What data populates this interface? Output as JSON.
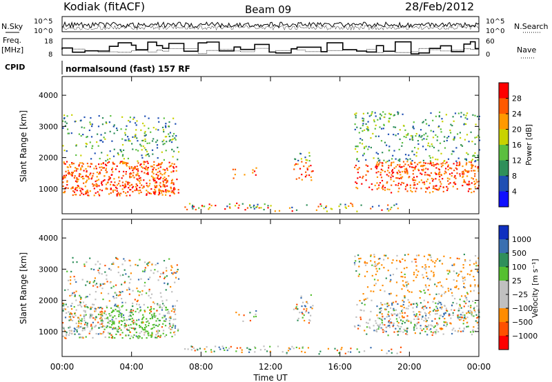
{
  "header": {
    "station": "Kodiak (fitACF)",
    "beam": "Beam 09",
    "date": "28/Feb/2012"
  },
  "status_panels": {
    "nsky_label": "N.Sky",
    "nsearch_label": "N.Search",
    "freq_label_1": "Freq.",
    "freq_label_2": "[MHz]",
    "nave_label": "Nave",
    "cpid_label": "CPID",
    "cpid_value": "normalsound (fast) 157 RF",
    "noise_ticks": [
      "10^5",
      "10^0"
    ],
    "freq_ticks": [
      "18",
      "8"
    ],
    "nave_ticks": [
      "60",
      "0"
    ]
  },
  "chart_data": [
    {
      "type": "heatmap",
      "quantity": "power",
      "ylabel": "Slant Range [km]",
      "xlabel": "",
      "yticks": [
        "1000",
        "2000",
        "3000",
        "4000"
      ],
      "ylim": [
        200,
        4600
      ],
      "colorbar_label": "Power [dB]",
      "colorbar_ticks": [
        "28",
        "24",
        "20",
        "16",
        "12",
        "8",
        "4"
      ],
      "colorbar_colors": [
        "#ff0000",
        "#ff5a00",
        "#ff9900",
        "#c9d200",
        "#5bbf3f",
        "#2f8f5a",
        "#1f4fb3",
        "#1010ff"
      ]
    },
    {
      "type": "heatmap",
      "quantity": "velocity",
      "ylabel": "Slant Range [km]",
      "xlabel": "Time UT",
      "yticks": [
        "1000",
        "2000",
        "3000",
        "4000"
      ],
      "ylim": [
        200,
        4600
      ],
      "xticks": [
        "00:00",
        "04:00",
        "08:00",
        "12:00",
        "16:00",
        "20:00",
        "00:00"
      ],
      "colorbar_label": "Velocity [m s⁻¹]",
      "colorbar_ticks": [
        "1000",
        "500",
        "100",
        "25",
        "−25",
        "−100",
        "−500",
        "−1000"
      ],
      "colorbar_colors": [
        "#1030c0",
        "#3a6fb0",
        "#2f8f5a",
        "#55c030",
        "#c0c0c0",
        "#c0c0c0",
        "#ff8c00",
        "#ff5000",
        "#ff0000"
      ]
    }
  ]
}
